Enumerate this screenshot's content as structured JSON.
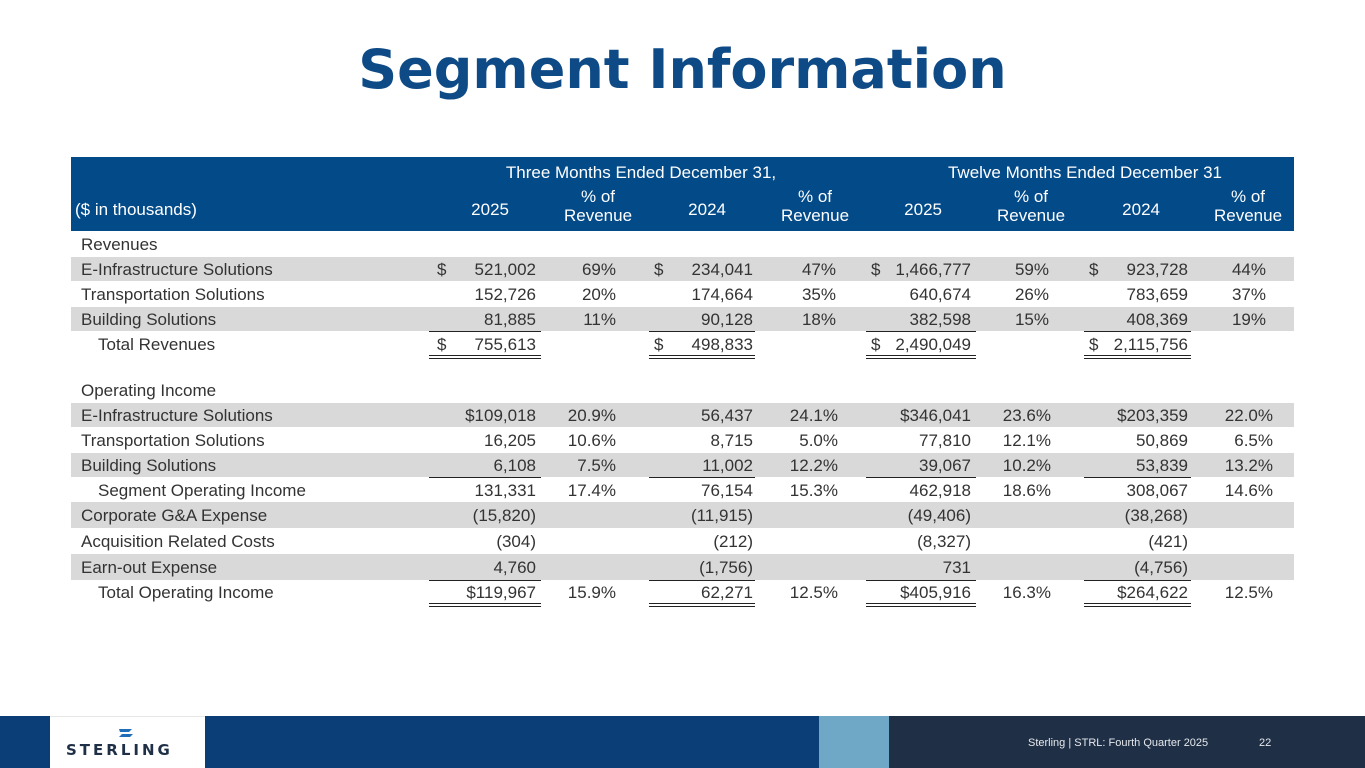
{
  "title": "Segment Information",
  "header": {
    "group_three": "Three Months Ended December 31,",
    "group_twelve": "Twelve Months Ended December 31",
    "label": "($ in thousands)",
    "year_2025": "2025",
    "year_2024": "2024",
    "pct_line1": "% of",
    "pct_line2": "Revenue"
  },
  "rows": {
    "revenues_label": "Revenues",
    "rev_e": {
      "label": "E-Infrastructure Solutions",
      "d1": "$",
      "v1": "521,002",
      "p1": "69%",
      "d2": "$",
      "v2": "234,041",
      "p2": "47%",
      "d3": "$",
      "v3": "1,466,777",
      "p3": "59%",
      "d4": "$",
      "v4": "923,728",
      "p4": "44%"
    },
    "rev_t": {
      "label": "Transportation Solutions",
      "v1": "152,726",
      "p1": "20%",
      "v2": "174,664",
      "p2": "35%",
      "v3": "640,674",
      "p3": "26%",
      "v4": "783,659",
      "p4": "37%"
    },
    "rev_b": {
      "label": "Building Solutions",
      "v1": "81,885",
      "p1": "11%",
      "v2": "90,128",
      "p2": "18%",
      "v3": "382,598",
      "p3": "15%",
      "v4": "408,369",
      "p4": "19%"
    },
    "rev_total": {
      "label": "Total Revenues",
      "d1": "$",
      "v1": "755,613",
      "d2": "$",
      "v2": "498,833",
      "d3": "$",
      "v3": "2,490,049",
      "d4": "$",
      "v4": "2,115,756"
    },
    "opinc_label": "Operating Income",
    "op_e": {
      "label": "E-Infrastructure Solutions",
      "v1": "$109,018",
      "p1": "20.9%",
      "v2": "56,437",
      "p2": "24.1%",
      "v3": "$346,041",
      "p3": "23.6%",
      "v4": "$203,359",
      "p4": "22.0%"
    },
    "op_t": {
      "label": "Transportation Solutions",
      "v1": "16,205",
      "p1": "10.6%",
      "v2": "8,715",
      "p2": "5.0%",
      "v3": "77,810",
      "p3": "12.1%",
      "v4": "50,869",
      "p4": "6.5%"
    },
    "op_b": {
      "label": "Building Solutions",
      "v1": "6,108",
      "p1": "7.5%",
      "v2": "11,002",
      "p2": "12.2%",
      "v3": "39,067",
      "p3": "10.2%",
      "v4": "53,839",
      "p4": "13.2%"
    },
    "op_seg": {
      "label": "Segment Operating Income",
      "v1": "131,331",
      "p1": "17.4%",
      "v2": "76,154",
      "p2": "15.3%",
      "v3": "462,918",
      "p3": "18.6%",
      "v4": "308,067",
      "p4": "14.6%"
    },
    "corp": {
      "label": "Corporate G&A Expense",
      "v1": "(15,820)",
      "v2": "(11,915)",
      "v3": "(49,406)",
      "v4": "(38,268)"
    },
    "acq": {
      "label": "Acquisition Related Costs",
      "v1": "(304)",
      "v2": "(212)",
      "v3": "(8,327)",
      "v4": "(421)"
    },
    "earn": {
      "label": "Earn-out Expense",
      "v1": "4,760",
      "v2": "(1,756)",
      "v3": "731",
      "v4": "(4,756)"
    },
    "total_op": {
      "label": "Total Operating Income",
      "v1": "$119,967",
      "p1": "15.9%",
      "v2": "62,271",
      "p2": "12.5%",
      "v3": "$405,916",
      "p3": "16.3%",
      "v4": "$264,622",
      "p4": "12.5%"
    }
  },
  "footer": {
    "logo_text": "STERLING",
    "caption": "Sterling | STRL:  Fourth Quarter  2025",
    "page": "22"
  },
  "colors": {
    "title": "#0d4a86",
    "header_bg": "#034a89",
    "shade": "#d9d9d9",
    "footer_dark": "#0b3e76",
    "footer_light": "#6fa8c6",
    "footer_navy": "#1f2f45"
  }
}
